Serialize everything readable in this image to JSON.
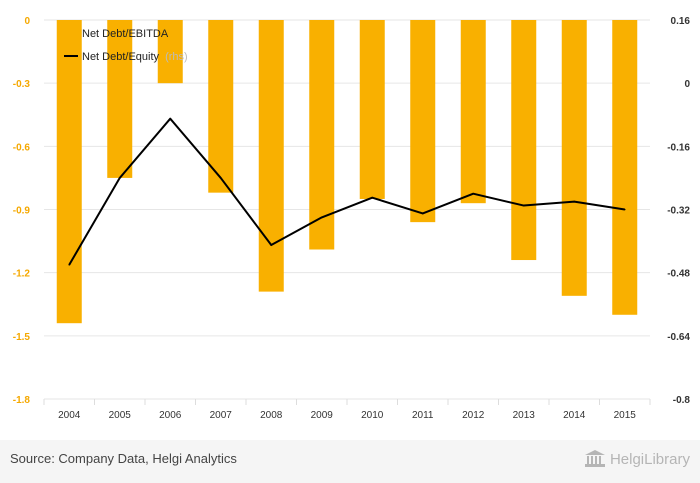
{
  "chart_data": {
    "type": "bar",
    "categories": [
      "2004",
      "2005",
      "2006",
      "2007",
      "2008",
      "2009",
      "2010",
      "2011",
      "2012",
      "2013",
      "2014",
      "2015"
    ],
    "series": [
      {
        "name": "Net Debt/EBITDA",
        "type": "bar",
        "axis": "left",
        "color": "#F9B000",
        "values": [
          -1.44,
          -0.75,
          -0.3,
          -0.82,
          -1.29,
          -1.09,
          -0.85,
          -0.96,
          -0.87,
          -1.14,
          -1.31,
          -1.4
        ]
      },
      {
        "name": "Net Debt/Equity",
        "type": "line",
        "axis": "right",
        "color": "#000000",
        "values": [
          -0.46,
          -0.24,
          -0.09,
          -0.24,
          -0.41,
          -0.34,
          -0.29,
          -0.33,
          -0.28,
          -0.31,
          -0.3,
          -0.32
        ]
      }
    ],
    "legend_suffix": "(rhs)",
    "y_left": {
      "ylim": [
        -1.8,
        0
      ],
      "ticks": [
        "0",
        "-0.3",
        "-0.6",
        "-0.9",
        "-1.2",
        "-1.5",
        "-1.8"
      ],
      "values": [
        0,
        -0.3,
        -0.6,
        -0.9,
        -1.2,
        -1.5,
        -1.8
      ]
    },
    "y_right": {
      "ylim": [
        -0.8,
        0.16
      ],
      "ticks": [
        "0.16",
        "0",
        "-0.16",
        "-0.32",
        "-0.48",
        "-0.64",
        "-0.8"
      ],
      "values": [
        0.16,
        0,
        -0.16,
        -0.32,
        -0.48,
        -0.64,
        -0.8
      ]
    },
    "grid": true,
    "legend_position": "top-left"
  },
  "footer": {
    "source": "Source: Company Data, Helgi Analytics",
    "logo": "HelgiLibrary"
  }
}
